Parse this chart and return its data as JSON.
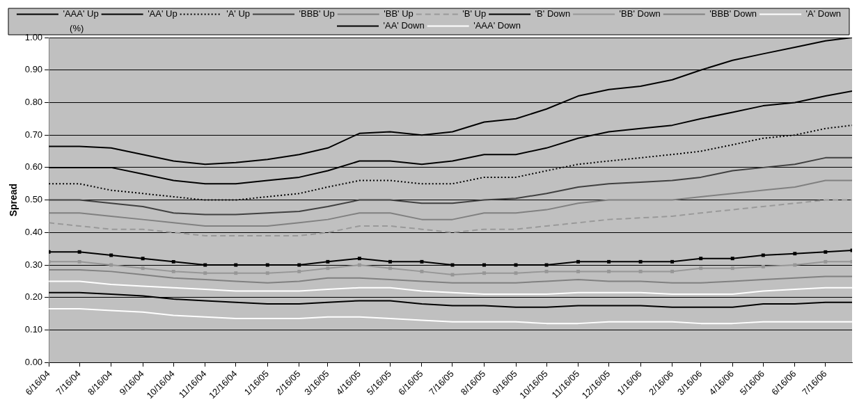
{
  "chart_data": {
    "type": "line",
    "ylabel": "Spread",
    "annotations": [
      "(%)"
    ],
    "x": [
      "2004-06-16",
      "2004-07-16",
      "2004-08-16",
      "2004-09-16",
      "2004-10-16",
      "2004-11-16",
      "2004-12-16",
      "2005-01-16",
      "2005-02-16",
      "2005-03-16",
      "2005-04-16",
      "2005-05-16",
      "2005-06-16",
      "2005-07-16",
      "2005-08-16",
      "2005-09-16",
      "2005-10-16",
      "2005-11-16",
      "2005-12-16",
      "2006-01-16",
      "2006-02-16",
      "2006-03-16",
      "2006-04-16",
      "2006-05-16",
      "2006-06-16",
      "2006-07-16",
      "2006-08-11"
    ],
    "xlim": [
      "2004-06-16",
      "2006-08-11"
    ],
    "xticks": [
      {
        "value": "2004-06-16",
        "label": "6/16/04"
      },
      {
        "value": "2004-07-16",
        "label": "7/16/04"
      },
      {
        "value": "2004-08-16",
        "label": "8/16/04"
      },
      {
        "value": "2004-09-16",
        "label": "9/16/04"
      },
      {
        "value": "2004-10-16",
        "label": "10/16/04"
      },
      {
        "value": "2004-11-16",
        "label": "11/16/04"
      },
      {
        "value": "2004-12-16",
        "label": "12/16/04"
      },
      {
        "value": "2005-01-16",
        "label": "1/16/05"
      },
      {
        "value": "2005-02-16",
        "label": "2/16/05"
      },
      {
        "value": "2005-03-16",
        "label": "3/16/05"
      },
      {
        "value": "2005-04-16",
        "label": "4/16/05"
      },
      {
        "value": "2005-05-16",
        "label": "5/16/05"
      },
      {
        "value": "2005-06-16",
        "label": "6/16/05"
      },
      {
        "value": "2005-07-16",
        "label": "7/16/05"
      },
      {
        "value": "2005-08-16",
        "label": "8/16/05"
      },
      {
        "value": "2005-09-16",
        "label": "9/16/05"
      },
      {
        "value": "2005-10-16",
        "label": "10/16/05"
      },
      {
        "value": "2005-11-16",
        "label": "11/16/05"
      },
      {
        "value": "2005-12-16",
        "label": "12/16/05"
      },
      {
        "value": "2006-01-16",
        "label": "1/16/06"
      },
      {
        "value": "2006-02-16",
        "label": "2/16/06"
      },
      {
        "value": "2006-03-16",
        "label": "3/16/06"
      },
      {
        "value": "2006-04-16",
        "label": "4/16/06"
      },
      {
        "value": "2006-05-16",
        "label": "5/16/06"
      },
      {
        "value": "2006-06-16",
        "label": "6/16/06"
      },
      {
        "value": "2006-07-16",
        "label": "7/16/06"
      }
    ],
    "ylim": [
      0,
      1
    ],
    "yticks": [
      {
        "value": 0,
        "label": "0.00"
      },
      {
        "value": 0.1,
        "label": "0.10"
      },
      {
        "value": 0.2,
        "label": "0.20"
      },
      {
        "value": 0.3,
        "label": "0.30"
      },
      {
        "value": 0.4,
        "label": "0.40"
      },
      {
        "value": 0.5,
        "label": "0.50"
      },
      {
        "value": 0.6,
        "label": "0.60"
      },
      {
        "value": 0.7,
        "label": "0.70"
      },
      {
        "value": 0.8,
        "label": "0.80"
      },
      {
        "value": 0.9,
        "label": "0.90"
      },
      {
        "value": 1,
        "label": "1.00"
      }
    ],
    "grid": "y",
    "legend": "top",
    "marker": "none",
    "line_style": "solid",
    "series": [
      {
        "name": "'AAA' Up",
        "color": "#000000",
        "values": [
          0.665,
          0.665,
          0.66,
          0.64,
          0.62,
          0.61,
          0.615,
          0.625,
          0.64,
          0.66,
          0.705,
          0.71,
          0.7,
          0.71,
          0.74,
          0.75,
          0.78,
          0.82,
          0.84,
          0.85,
          0.87,
          0.9,
          0.93,
          0.95,
          0.97,
          0.99,
          1.0
        ]
      },
      {
        "name": "'AA' Up",
        "color": "#000000",
        "values": [
          0.6,
          0.6,
          0.6,
          0.58,
          0.56,
          0.55,
          0.55,
          0.56,
          0.57,
          0.59,
          0.62,
          0.62,
          0.61,
          0.62,
          0.64,
          0.64,
          0.66,
          0.69,
          0.71,
          0.72,
          0.73,
          0.75,
          0.77,
          0.79,
          0.8,
          0.82,
          0.835
        ]
      },
      {
        "name": "'A' Up",
        "color": "#000000",
        "line_style": "dotted",
        "values": [
          0.55,
          0.55,
          0.53,
          0.52,
          0.51,
          0.5,
          0.5,
          0.51,
          0.52,
          0.54,
          0.56,
          0.56,
          0.55,
          0.55,
          0.57,
          0.57,
          0.59,
          0.61,
          0.62,
          0.63,
          0.64,
          0.65,
          0.67,
          0.69,
          0.7,
          0.72,
          0.73
        ]
      },
      {
        "name": "'BBB' Up",
        "color": "#404040",
        "values": [
          0.5,
          0.5,
          0.49,
          0.48,
          0.46,
          0.455,
          0.455,
          0.46,
          0.465,
          0.48,
          0.5,
          0.5,
          0.49,
          0.49,
          0.5,
          0.505,
          0.52,
          0.54,
          0.55,
          0.555,
          0.56,
          0.57,
          0.59,
          0.6,
          0.61,
          0.63,
          0.63
        ]
      },
      {
        "name": "'BB' Up",
        "color": "#808080",
        "values": [
          0.46,
          0.46,
          0.45,
          0.44,
          0.43,
          0.42,
          0.42,
          0.42,
          0.43,
          0.44,
          0.46,
          0.46,
          0.44,
          0.44,
          0.46,
          0.46,
          0.47,
          0.49,
          0.5,
          0.5,
          0.5,
          0.51,
          0.52,
          0.53,
          0.54,
          0.56,
          0.56
        ]
      },
      {
        "name": "'B' Up",
        "color": "#999999",
        "line_style": "dashed",
        "values": [
          0.43,
          0.42,
          0.41,
          0.41,
          0.4,
          0.39,
          0.39,
          0.39,
          0.39,
          0.4,
          0.42,
          0.42,
          0.41,
          0.4,
          0.41,
          0.41,
          0.42,
          0.43,
          0.44,
          0.445,
          0.45,
          0.46,
          0.47,
          0.48,
          0.49,
          0.5,
          0.5
        ]
      },
      {
        "name": "'B' Down",
        "color": "#000000",
        "marker": "square",
        "values": [
          0.34,
          0.34,
          0.33,
          0.32,
          0.31,
          0.3,
          0.3,
          0.3,
          0.3,
          0.31,
          0.32,
          0.31,
          0.31,
          0.3,
          0.3,
          0.3,
          0.3,
          0.31,
          0.31,
          0.31,
          0.31,
          0.32,
          0.32,
          0.33,
          0.335,
          0.34,
          0.345
        ]
      },
      {
        "name": "'BB' Down",
        "color": "#969696",
        "marker": "square",
        "values": [
          0.31,
          0.31,
          0.3,
          0.29,
          0.28,
          0.275,
          0.275,
          0.275,
          0.28,
          0.29,
          0.3,
          0.29,
          0.28,
          0.27,
          0.275,
          0.275,
          0.28,
          0.28,
          0.28,
          0.28,
          0.28,
          0.29,
          0.29,
          0.295,
          0.3,
          0.31,
          0.31
        ]
      },
      {
        "name": "'BBB' Down",
        "color": "#808080",
        "values": [
          0.285,
          0.285,
          0.28,
          0.27,
          0.26,
          0.255,
          0.25,
          0.245,
          0.25,
          0.26,
          0.26,
          0.255,
          0.25,
          0.245,
          0.245,
          0.245,
          0.25,
          0.255,
          0.25,
          0.25,
          0.245,
          0.245,
          0.25,
          0.255,
          0.26,
          0.265,
          0.265
        ]
      },
      {
        "name": "'A' Down",
        "color": "#ffffff",
        "values": [
          0.25,
          0.25,
          0.24,
          0.235,
          0.23,
          0.225,
          0.22,
          0.22,
          0.22,
          0.225,
          0.23,
          0.23,
          0.22,
          0.215,
          0.21,
          0.21,
          0.21,
          0.215,
          0.215,
          0.215,
          0.21,
          0.21,
          0.21,
          0.22,
          0.225,
          0.23,
          0.23
        ]
      },
      {
        "name": "'AA' Down",
        "color": "#000000",
        "values": [
          0.215,
          0.215,
          0.21,
          0.205,
          0.195,
          0.19,
          0.185,
          0.18,
          0.18,
          0.185,
          0.19,
          0.19,
          0.18,
          0.175,
          0.175,
          0.17,
          0.17,
          0.175,
          0.175,
          0.175,
          0.17,
          0.17,
          0.17,
          0.18,
          0.18,
          0.185,
          0.185
        ]
      },
      {
        "name": "'AAA' Down",
        "color": "#ffffff",
        "values": [
          0.165,
          0.165,
          0.16,
          0.155,
          0.145,
          0.14,
          0.135,
          0.135,
          0.135,
          0.14,
          0.14,
          0.135,
          0.13,
          0.125,
          0.125,
          0.125,
          0.12,
          0.12,
          0.125,
          0.125,
          0.125,
          0.12,
          0.12,
          0.125,
          0.125,
          0.125,
          0.125
        ]
      }
    ]
  }
}
